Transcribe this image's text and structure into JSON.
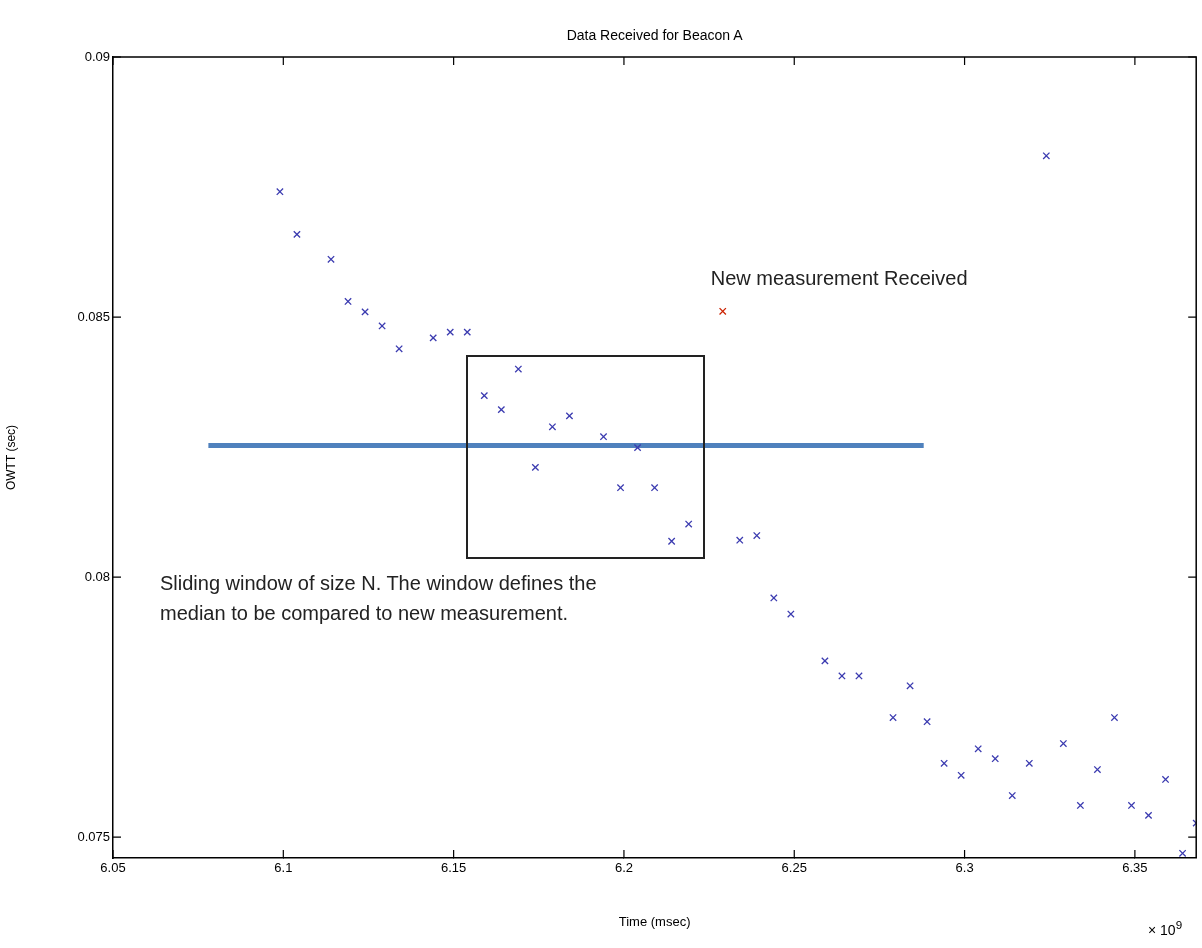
{
  "chart_data": {
    "type": "scatter",
    "title": "Data Received for Beacon A",
    "xlabel": "Time (msec)",
    "ylabel": "OWTT (sec)",
    "xlim": [
      6.05,
      6.368
    ],
    "ylim": [
      0.0746,
      0.09
    ],
    "xticks": [
      6.05,
      6.1,
      6.15,
      6.2,
      6.25,
      6.3,
      6.35
    ],
    "yticks": [
      0.075,
      0.08,
      0.085,
      0.09
    ],
    "grid": false,
    "legend": false,
    "marker": "cross",
    "series": [
      {
        "type": "scatter",
        "color": "#3b3bb0",
        "x": [
          6.099,
          6.104,
          6.114,
          6.119,
          6.124,
          6.129,
          6.134,
          6.144,
          6.149,
          6.154,
          6.159,
          6.164,
          6.169,
          6.174,
          6.179,
          6.184,
          6.194,
          6.199,
          6.204,
          6.209,
          6.214,
          6.219,
          6.234,
          6.239,
          6.244,
          6.249,
          6.259,
          6.264,
          6.269,
          6.279,
          6.284,
          6.289,
          6.294,
          6.299,
          6.304,
          6.309,
          6.314,
          6.319,
          6.324,
          6.329,
          6.334,
          6.339,
          6.344,
          6.349,
          6.354,
          6.359,
          6.364,
          6.368
        ],
        "values": [
          0.08741,
          0.08659,
          0.08611,
          0.0853,
          0.0851,
          0.08483,
          0.08439,
          0.0846,
          0.08471,
          0.08471,
          0.08349,
          0.08322,
          0.084,
          0.08211,
          0.08289,
          0.0831,
          0.0827,
          0.08172,
          0.08249,
          0.08172,
          0.08069,
          0.08102,
          0.08071,
          0.0808,
          0.0796,
          0.07929,
          0.07839,
          0.0781,
          0.0781,
          0.0773,
          0.07791,
          0.07722,
          0.07642,
          0.07619,
          0.0767,
          0.07651,
          0.0758,
          0.07642,
          0.0881,
          0.0768,
          0.07561,
          0.0763,
          0.0773,
          0.07561,
          0.07542,
          0.07611,
          0.07469,
          0.07527
        ]
      },
      {
        "type": "scatter",
        "color": "#cc2200",
        "x": [
          6.229
        ],
        "values": [
          0.08511
        ]
      },
      {
        "type": "line",
        "color": "#4f81bd",
        "marker": "none",
        "x": [
          6.078,
          6.288
        ],
        "values": [
          0.08253,
          0.08253
        ]
      }
    ],
    "annotations": [
      {
        "text": "New measurement Received",
        "x": 6.229,
        "y": 0.08511
      },
      "Sliding window of size N. The window defines the median to be compared to new measurement.",
      "× 10$^{9}$"
    ]
  }
}
